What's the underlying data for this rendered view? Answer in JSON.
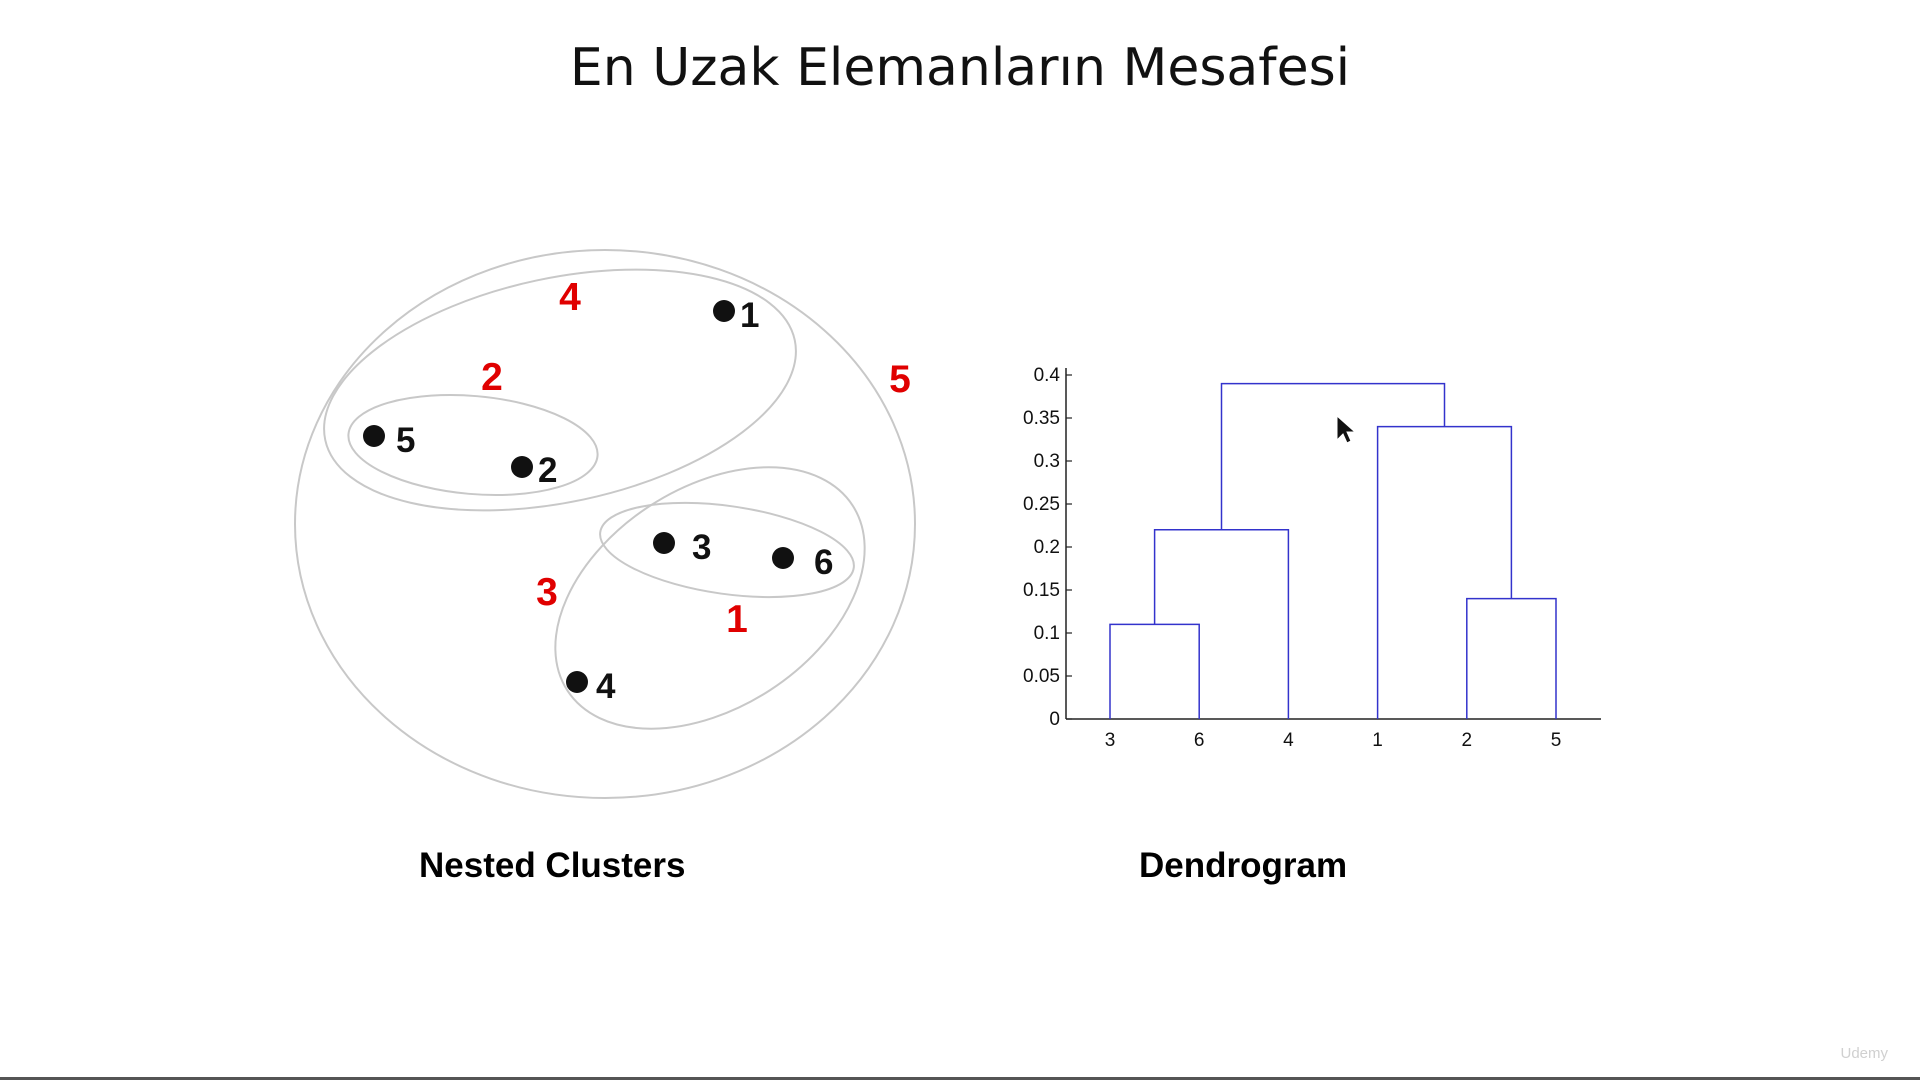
{
  "title": "En Uzak Elemanların Mesafesi",
  "colors": {
    "merge_order": "#e00000",
    "point": "#111111",
    "ellipse": "#c8c8c8",
    "dendrogram": "#3333cc"
  },
  "nested_clusters": {
    "caption": "Nested Clusters",
    "points": [
      "1",
      "5",
      "2",
      "3",
      "6",
      "4"
    ],
    "merge_labels": [
      "4",
      "2",
      "5",
      "3",
      "1"
    ]
  },
  "dendrogram": {
    "caption": "Dendrogram",
    "y_ticks": [
      "0.4",
      "0.35",
      "0.3",
      "0.25",
      "0.2",
      "0.15",
      "0.1",
      "0.05",
      "0"
    ],
    "x_labels": [
      "3",
      "6",
      "4",
      "1",
      "2",
      "5"
    ]
  },
  "chart_data": {
    "type": "dendrogram",
    "leaf_order": [
      "3",
      "6",
      "4",
      "1",
      "2",
      "5"
    ],
    "ylim": [
      0,
      0.4
    ],
    "merges": [
      {
        "left": "3",
        "right": "6",
        "height": 0.11
      },
      {
        "left": "2",
        "right": "5",
        "height": 0.14
      },
      {
        "left": "3,6",
        "right": "4",
        "height": 0.22
      },
      {
        "left": "1",
        "right": "2,5",
        "height": 0.34
      },
      {
        "left": "3,6,4",
        "right": "1,2,5",
        "height": 0.39
      }
    ]
  },
  "watermark": "Udemy"
}
